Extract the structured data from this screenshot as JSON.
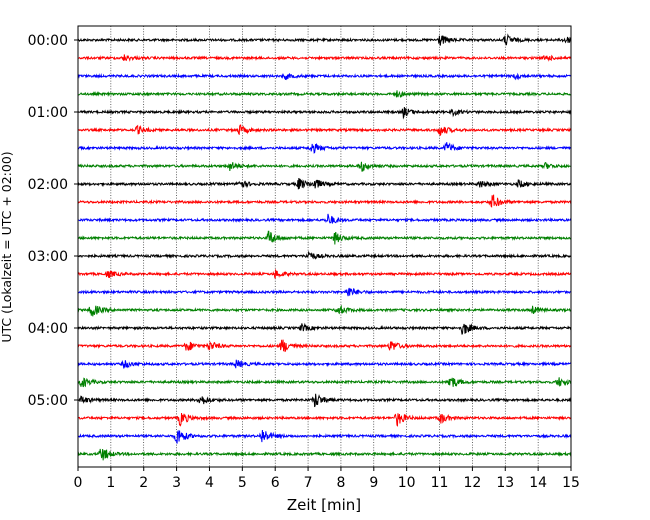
{
  "chart_data": {
    "type": "line",
    "title": "",
    "xlabel": "Zeit  [min]",
    "ylabel": "UTC (Lokalzeit = UTC + 02:00)",
    "xlim": [
      0,
      15
    ],
    "xticks": [
      0,
      1,
      2,
      3,
      4,
      5,
      6,
      7,
      8,
      9,
      10,
      11,
      12,
      13,
      14,
      15
    ],
    "xtick_labels": [
      "0",
      "1",
      "2",
      "3",
      "4",
      "5",
      "6",
      "7",
      "8",
      "9",
      "10",
      "11",
      "12",
      "13",
      "14",
      "15"
    ],
    "ytick_labels": [
      "00:00",
      "01:00",
      "02:00",
      "03:00",
      "04:00",
      "05:00"
    ],
    "ytick_traces": [
      0,
      4,
      8,
      12,
      16,
      20
    ],
    "grid": "vertical dotted",
    "legend": "none",
    "trace_interval_min": 15,
    "colors_cycle": [
      "#000000",
      "#ff0000",
      "#0000ff",
      "#008000"
    ],
    "traces": [
      {
        "start": "00:00",
        "color": "#000000",
        "events": [
          [
            11.0,
            6.0
          ],
          [
            13.0,
            6.0
          ],
          [
            14.8,
            4.0
          ]
        ]
      },
      {
        "start": "00:15",
        "color": "#ff0000",
        "events": [
          [
            1.4,
            3.0
          ],
          [
            14.2,
            3.0
          ]
        ]
      },
      {
        "start": "00:30",
        "color": "#0000ff",
        "events": [
          [
            6.3,
            3.0
          ],
          [
            13.3,
            3.0
          ]
        ]
      },
      {
        "start": "00:45",
        "color": "#008000",
        "events": [
          [
            9.7,
            3.0
          ]
        ]
      },
      {
        "start": "01:00",
        "color": "#000000",
        "events": [
          [
            9.9,
            5.0
          ],
          [
            11.4,
            3.0
          ]
        ]
      },
      {
        "start": "01:15",
        "color": "#ff0000",
        "events": [
          [
            1.8,
            4.0
          ],
          [
            4.9,
            5.0
          ],
          [
            11.0,
            6.0
          ]
        ]
      },
      {
        "start": "01:30",
        "color": "#0000ff",
        "events": [
          [
            7.1,
            6.0
          ],
          [
            11.2,
            6.0
          ]
        ]
      },
      {
        "start": "01:45",
        "color": "#008000",
        "events": [
          [
            4.6,
            5.0
          ],
          [
            8.6,
            6.0
          ],
          [
            14.2,
            3.0
          ]
        ]
      },
      {
        "start": "02:00",
        "color": "#000000",
        "events": [
          [
            4.9,
            5.0
          ],
          [
            6.7,
            6.0
          ],
          [
            7.2,
            5.0
          ],
          [
            12.2,
            4.0
          ],
          [
            13.4,
            4.0
          ]
        ]
      },
      {
        "start": "02:15",
        "color": "#ff0000",
        "events": [
          [
            12.6,
            8.0
          ]
        ]
      },
      {
        "start": "02:30",
        "color": "#0000ff",
        "events": [
          [
            7.6,
            6.0
          ]
        ]
      },
      {
        "start": "02:45",
        "color": "#008000",
        "events": [
          [
            5.8,
            8.0
          ],
          [
            7.8,
            6.0
          ]
        ]
      },
      {
        "start": "03:00",
        "color": "#000000",
        "events": [
          [
            7.0,
            5.0
          ]
        ]
      },
      {
        "start": "03:15",
        "color": "#ff0000",
        "events": [
          [
            0.9,
            4.0
          ],
          [
            6.0,
            4.0
          ]
        ]
      },
      {
        "start": "03:30",
        "color": "#0000ff",
        "events": [
          [
            8.2,
            6.0
          ]
        ]
      },
      {
        "start": "03:45",
        "color": "#008000",
        "events": [
          [
            0.4,
            8.0
          ],
          [
            7.9,
            5.0
          ],
          [
            13.8,
            4.0
          ]
        ]
      },
      {
        "start": "04:00",
        "color": "#000000",
        "events": [
          [
            6.8,
            4.0
          ],
          [
            11.7,
            8.0
          ]
        ]
      },
      {
        "start": "04:15",
        "color": "#ff0000",
        "events": [
          [
            3.3,
            6.0
          ],
          [
            4.0,
            5.0
          ],
          [
            6.2,
            8.0
          ],
          [
            9.5,
            6.0
          ]
        ]
      },
      {
        "start": "04:30",
        "color": "#0000ff",
        "events": [
          [
            1.4,
            4.0
          ],
          [
            4.8,
            4.0
          ]
        ]
      },
      {
        "start": "04:45",
        "color": "#008000",
        "events": [
          [
            0.1,
            6.0
          ],
          [
            11.3,
            8.0
          ],
          [
            14.6,
            5.0
          ]
        ]
      },
      {
        "start": "05:00",
        "color": "#000000",
        "events": [
          [
            0.1,
            4.0
          ],
          [
            3.7,
            6.0
          ],
          [
            7.2,
            8.0
          ]
        ]
      },
      {
        "start": "05:15",
        "color": "#ff0000",
        "events": [
          [
            3.1,
            8.0
          ],
          [
            9.7,
            8.0
          ],
          [
            11.0,
            6.0
          ]
        ]
      },
      {
        "start": "05:30",
        "color": "#0000ff",
        "events": [
          [
            3.0,
            10.0
          ],
          [
            5.6,
            8.0
          ]
        ]
      },
      {
        "start": "05:45",
        "color": "#008000",
        "events": [
          [
            0.7,
            8.0
          ]
        ]
      }
    ]
  }
}
